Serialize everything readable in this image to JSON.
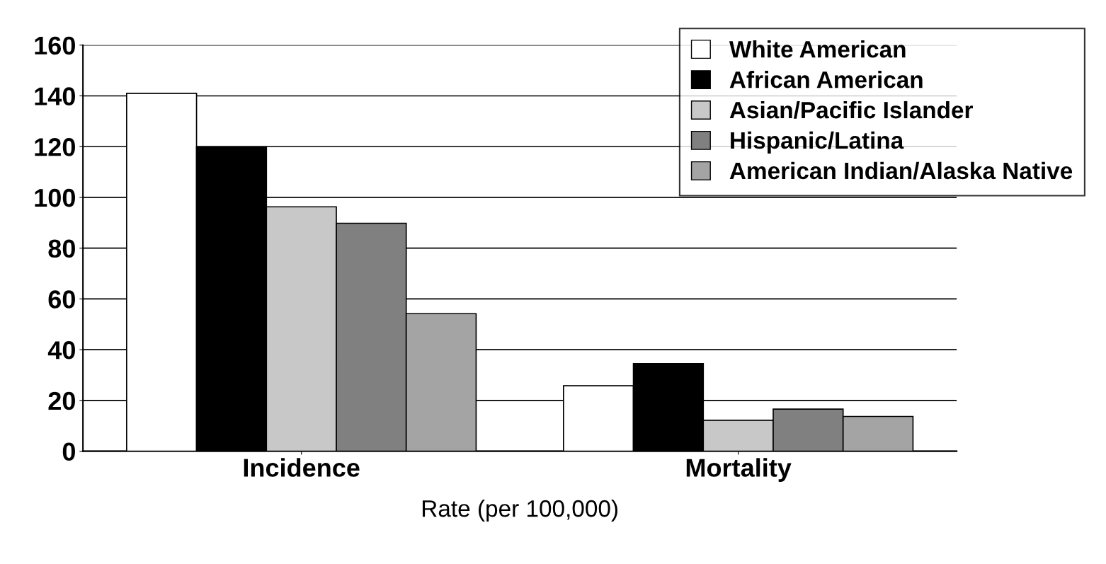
{
  "chart_data": {
    "type": "bar",
    "xlabel": "Rate (per 100,000)",
    "categories": [
      "Incidence",
      "Mortality"
    ],
    "series": [
      {
        "name": "White American",
        "color": "#ffffff",
        "values": [
          141,
          25.8
        ]
      },
      {
        "name": "African American",
        "color": "#000000",
        "values": [
          120,
          34.5
        ]
      },
      {
        "name": "Asian/Pacific Islander",
        "color": "#c8c8c8",
        "values": [
          96.3,
          12.2
        ]
      },
      {
        "name": "Hispanic/Latina",
        "color": "#808080",
        "values": [
          89.8,
          16.6
        ]
      },
      {
        "name": "American Indian/Alaska Native",
        "color": "#a4a4a4",
        "values": [
          54.2,
          13.7
        ]
      }
    ],
    "ylim": [
      0,
      160
    ],
    "yticks": [
      0,
      20,
      40,
      60,
      80,
      100,
      120,
      140,
      160
    ],
    "grid": "y",
    "legend": "top right"
  }
}
